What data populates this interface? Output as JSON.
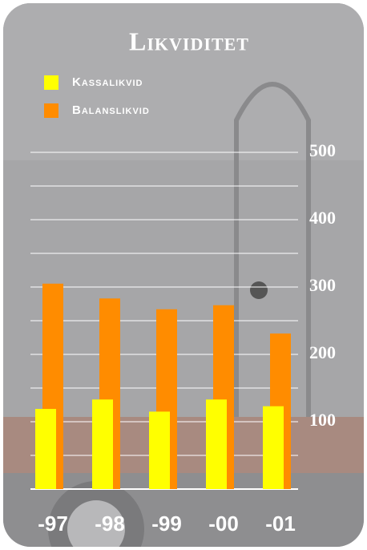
{
  "chart_data": {
    "type": "bar",
    "title": "Likviditet",
    "categories": [
      "-97",
      "-98",
      "-99",
      "-00",
      "-01"
    ],
    "series": [
      {
        "name": "Kassalikvid",
        "color": "#ffff00",
        "values": [
          119,
          133,
          115,
          133,
          123
        ]
      },
      {
        "name": "Balanslikvid",
        "color": "#ff8c00",
        "values": [
          305,
          283,
          267,
          273,
          231
        ]
      }
    ],
    "ylim": [
      0,
      500
    ],
    "yticks": [
      100,
      200,
      300,
      400,
      500
    ],
    "minor_yticks": [
      50,
      150,
      250,
      350,
      450
    ],
    "grid": true
  }
}
